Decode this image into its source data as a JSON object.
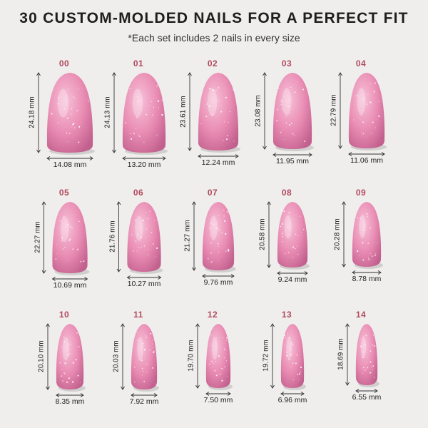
{
  "title": "30 CUSTOM-MOLDED NAILS FOR A PERFECT FIT",
  "subtitle": "*Each set includes 2 nails in every size",
  "colors": {
    "background": "#efeeed",
    "size_label": "#b24a5e",
    "nail_fill": "#e98cb3",
    "nail_highlight": "#f7c2d9",
    "nail_shadow": "#c2608e"
  },
  "nails": [
    {
      "size": "00",
      "length": "24.18 mm",
      "width": "14.08 mm"
    },
    {
      "size": "01",
      "length": "24.13 mm",
      "width": "13.20 mm"
    },
    {
      "size": "02",
      "length": "23.61 mm",
      "width": "12.24 mm"
    },
    {
      "size": "03",
      "length": "23.08 mm",
      "width": "11.95 mm"
    },
    {
      "size": "04",
      "length": "22.79 mm",
      "width": "11.06 mm"
    },
    {
      "size": "05",
      "length": "22.27 mm",
      "width": "10.69 mm"
    },
    {
      "size": "06",
      "length": "21.76 mm",
      "width": "10.27 mm"
    },
    {
      "size": "07",
      "length": "21.27 mm",
      "width": "9.76 mm"
    },
    {
      "size": "08",
      "length": "20.58 mm",
      "width": "9.24 mm"
    },
    {
      "size": "09",
      "length": "20.28 mm",
      "width": "8.78 mm"
    },
    {
      "size": "10",
      "length": "20.10 mm",
      "width": "8.35 mm"
    },
    {
      "size": "11",
      "length": "20.03 mm",
      "width": "7.92 mm"
    },
    {
      "size": "12",
      "length": "19.70 mm",
      "width": "7.50 mm"
    },
    {
      "size": "13",
      "length": "19.72 mm",
      "width": "6.96 mm"
    },
    {
      "size": "14",
      "length": "18.69 mm",
      "width": "6.55 mm"
    }
  ]
}
